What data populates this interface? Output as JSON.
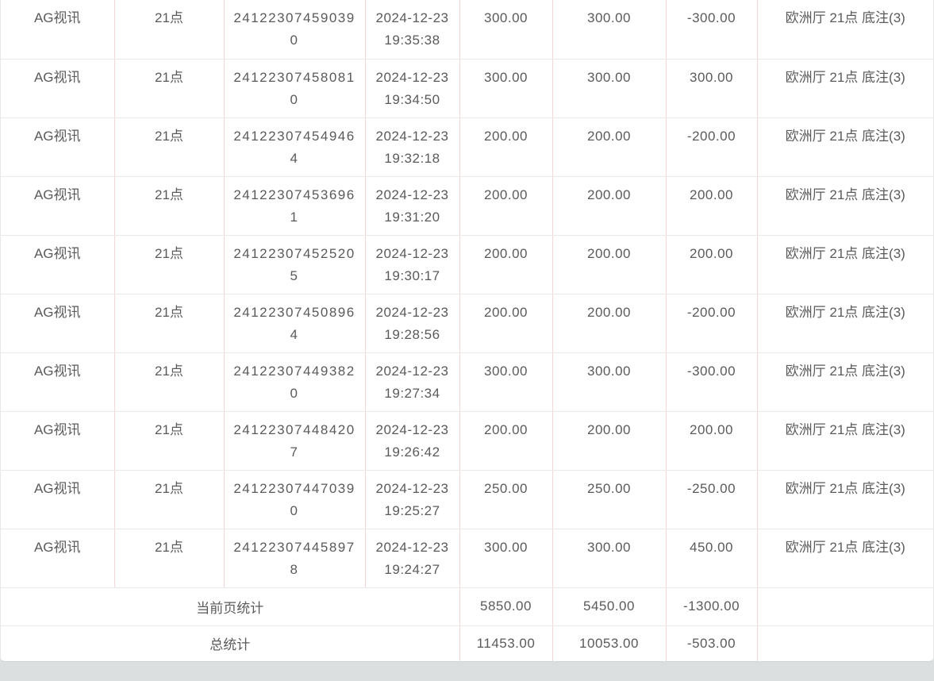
{
  "colors": {
    "text": "#5a5a5a",
    "row_border": "#e9e9e9",
    "column_border": "#f4d6d6",
    "page_background": "#dcdfe0",
    "card_background": "#ffffff"
  },
  "table": {
    "rows": [
      {
        "platform": "AG视讯",
        "game": "21点",
        "order_no": "241223074590390",
        "time": "2024-12-23 19:35:38",
        "bet": "300.00",
        "valid_bet": "300.00",
        "win_loss": "-300.00",
        "detail": "欧洲厅 21点 底注(3)"
      },
      {
        "platform": "AG视讯",
        "game": "21点",
        "order_no": "241223074580810",
        "time": "2024-12-23 19:34:50",
        "bet": "300.00",
        "valid_bet": "300.00",
        "win_loss": "300.00",
        "detail": "欧洲厅 21点 底注(3)"
      },
      {
        "platform": "AG视讯",
        "game": "21点",
        "order_no": "241223074549464",
        "time": "2024-12-23 19:32:18",
        "bet": "200.00",
        "valid_bet": "200.00",
        "win_loss": "-200.00",
        "detail": "欧洲厅 21点 底注(3)"
      },
      {
        "platform": "AG视讯",
        "game": "21点",
        "order_no": "241223074536961",
        "time": "2024-12-23 19:31:20",
        "bet": "200.00",
        "valid_bet": "200.00",
        "win_loss": "200.00",
        "detail": "欧洲厅 21点 底注(3)"
      },
      {
        "platform": "AG视讯",
        "game": "21点",
        "order_no": "241223074525205",
        "time": "2024-12-23 19:30:17",
        "bet": "200.00",
        "valid_bet": "200.00",
        "win_loss": "200.00",
        "detail": "欧洲厅 21点 底注(3)"
      },
      {
        "platform": "AG视讯",
        "game": "21点",
        "order_no": "241223074508964",
        "time": "2024-12-23 19:28:56",
        "bet": "200.00",
        "valid_bet": "200.00",
        "win_loss": "-200.00",
        "detail": "欧洲厅 21点 底注(3)"
      },
      {
        "platform": "AG视讯",
        "game": "21点",
        "order_no": "241223074493820",
        "time": "2024-12-23 19:27:34",
        "bet": "300.00",
        "valid_bet": "300.00",
        "win_loss": "-300.00",
        "detail": "欧洲厅 21点 底注(3)"
      },
      {
        "platform": "AG视讯",
        "game": "21点",
        "order_no": "241223074484207",
        "time": "2024-12-23 19:26:42",
        "bet": "200.00",
        "valid_bet": "200.00",
        "win_loss": "200.00",
        "detail": "欧洲厅 21点 底注(3)"
      },
      {
        "platform": "AG视讯",
        "game": "21点",
        "order_no": "241223074470390",
        "time": "2024-12-23 19:25:27",
        "bet": "250.00",
        "valid_bet": "250.00",
        "win_loss": "-250.00",
        "detail": "欧洲厅 21点 底注(3)"
      },
      {
        "platform": "AG视讯",
        "game": "21点",
        "order_no": "241223074458978",
        "time": "2024-12-23 19:24:27",
        "bet": "300.00",
        "valid_bet": "300.00",
        "win_loss": "450.00",
        "detail": "欧洲厅 21点 底注(3)"
      }
    ],
    "footer": {
      "page_stats": {
        "label": "当前页统计",
        "bet": "5850.00",
        "valid_bet": "5450.00",
        "win_loss": "-1300.00",
        "detail": ""
      },
      "total_stats": {
        "label": "总统计",
        "bet": "11453.00",
        "valid_bet": "10053.00",
        "win_loss": "-503.00",
        "detail": ""
      }
    }
  }
}
